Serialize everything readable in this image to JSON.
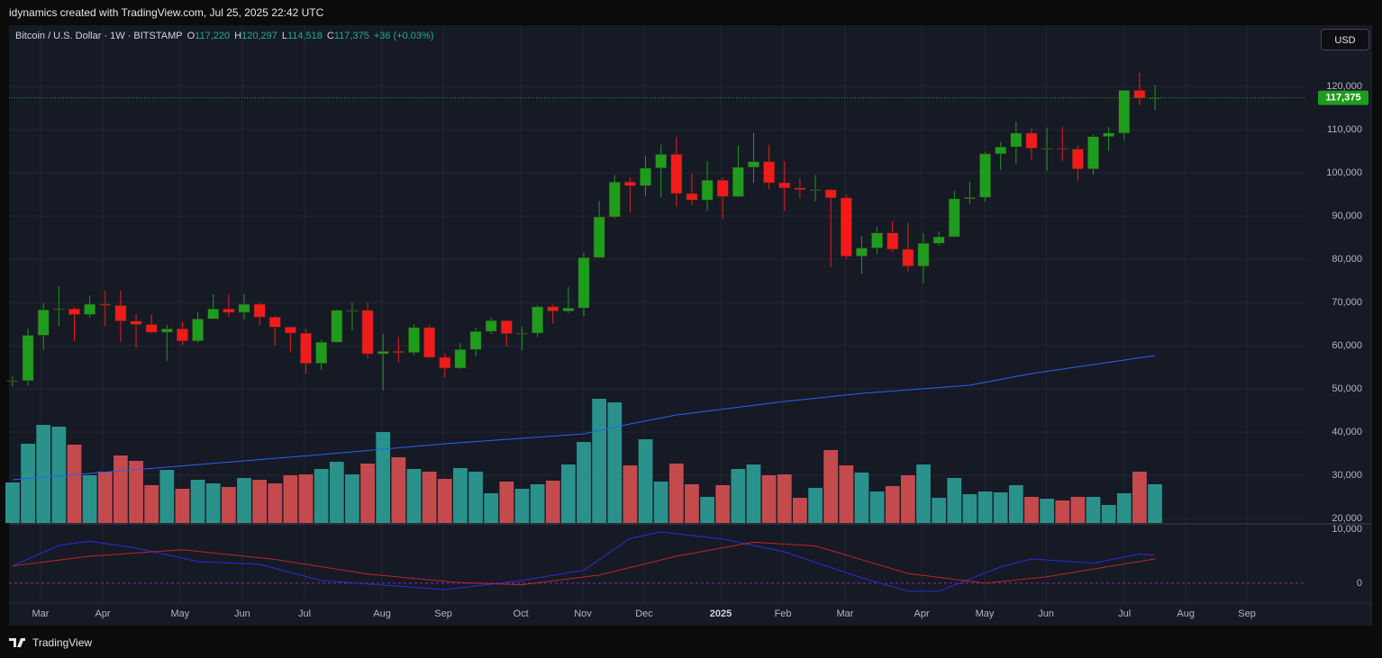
{
  "header": {
    "text": "idynamics created with TradingView.com, Jul 25, 2025 22:42 UTC"
  },
  "footer": {
    "brand": "TradingView"
  },
  "currency_button": "USD",
  "legend": {
    "symbol": "Bitcoin / U.S. Dollar · 1W · BITSTAMP",
    "fields": [
      {
        "key": "O",
        "value": "117,220"
      },
      {
        "key": "H",
        "value": "120,297"
      },
      {
        "key": "L",
        "value": "114,518"
      },
      {
        "key": "C",
        "value": "117,375"
      }
    ],
    "change": "+36 (+0.03%)"
  },
  "chart_data": {
    "type": "candlestick",
    "x": [
      0,
      1,
      2,
      3,
      4,
      5,
      6,
      7,
      8,
      9,
      10,
      11,
      12,
      13,
      14,
      15,
      16,
      17,
      18,
      19,
      20,
      21,
      22,
      23,
      24,
      25,
      26,
      27,
      28,
      29,
      30,
      31,
      32,
      33,
      34,
      35,
      36,
      37,
      38,
      39,
      40,
      41,
      42,
      43,
      44,
      45,
      46,
      47,
      48,
      49,
      50,
      51,
      52,
      53,
      54,
      55,
      56,
      57,
      58,
      59,
      60,
      61,
      62,
      63,
      64,
      65,
      66,
      67,
      68,
      69,
      70,
      71,
      72,
      73,
      74
    ],
    "open": [
      51700,
      51900,
      62400,
      68300,
      68500,
      67200,
      69600,
      69300,
      65700,
      64900,
      63100,
      63900,
      61100,
      66200,
      68500,
      67700,
      69600,
      66600,
      64300,
      62900,
      55900,
      60800,
      68200,
      68200,
      58100,
      58700,
      58400,
      64200,
      57300,
      54800,
      59100,
      63300,
      65800,
      62800,
      62900,
      69000,
      68000,
      68700,
      80400,
      89800,
      97900,
      97000,
      101100,
      104300,
      95200,
      93700,
      98300,
      94500,
      101300,
      102600,
      97700,
      96500,
      96100,
      96100,
      94200,
      80700,
      82600,
      86100,
      82300,
      78400,
      83700,
      85200,
      94000,
      94300,
      104400,
      106000,
      109200,
      105700,
      105700,
      105500,
      100900,
      108400,
      109200,
      119100,
      117220
    ],
    "high": [
      52900,
      64000,
      69900,
      73700,
      68900,
      71600,
      72700,
      72800,
      67300,
      67200,
      64800,
      65500,
      67700,
      71900,
      71900,
      71900,
      70100,
      66900,
      64500,
      63900,
      61400,
      68400,
      70000,
      70000,
      62700,
      62000,
      65000,
      64900,
      58200,
      60600,
      64100,
      66500,
      66000,
      64400,
      69400,
      69500,
      73600,
      81500,
      93500,
      99500,
      98900,
      103900,
      106500,
      108300,
      99800,
      102700,
      98900,
      106300,
      109300,
      106500,
      102700,
      98800,
      99500,
      96300,
      95000,
      85300,
      87500,
      88800,
      88500,
      86000,
      86400,
      95800,
      97900,
      104900,
      107100,
      111900,
      110400,
      110500,
      110600,
      106300,
      108800,
      110600,
      119000,
      123200,
      120297
    ],
    "low": [
      50500,
      50800,
      59000,
      64500,
      61000,
      66500,
      64500,
      60800,
      59600,
      62800,
      56500,
      60200,
      60700,
      66100,
      66700,
      66100,
      64600,
      60000,
      58400,
      53500,
      54300,
      60800,
      63500,
      57100,
      49600,
      56100,
      57800,
      57100,
      52600,
      54600,
      57500,
      62700,
      59800,
      58900,
      62000,
      65100,
      67500,
      66800,
      80400,
      89400,
      90800,
      94600,
      94300,
      92200,
      92500,
      91300,
      89300,
      94300,
      97700,
      96200,
      91200,
      94100,
      93400,
      78200,
      80000,
      76600,
      81200,
      81600,
      77200,
      74400,
      83100,
      85100,
      92800,
      93400,
      100700,
      102000,
      103100,
      100400,
      102700,
      98200,
      99600,
      105100,
      107500,
      115700,
      114518
    ],
    "close": [
      51900,
      62400,
      68300,
      68500,
      67200,
      69600,
      69300,
      65700,
      64900,
      63100,
      63900,
      61100,
      66200,
      68500,
      67700,
      69600,
      66600,
      64300,
      62900,
      55900,
      60800,
      68200,
      68200,
      58100,
      58700,
      58400,
      64200,
      57300,
      54800,
      59100,
      63300,
      65800,
      62800,
      62900,
      69000,
      68000,
      68700,
      80400,
      89800,
      97900,
      97000,
      101100,
      104300,
      95200,
      93700,
      98300,
      94500,
      101300,
      102600,
      97700,
      96500,
      96100,
      96100,
      94200,
      80700,
      82600,
      86100,
      82300,
      78400,
      83700,
      85200,
      94000,
      94300,
      104400,
      106000,
      109200,
      105700,
      105700,
      105500,
      100900,
      108400,
      109200,
      119100,
      117300,
      117375
    ],
    "up_color": "#1e9c1e",
    "down_color": "#f21b1b",
    "last_price_label": "117,375",
    "last_price_color": "#1e9c1e",
    "volume": {
      "values": [
        9000,
        17600,
        21800,
        21400,
        17400,
        10600,
        11400,
        15000,
        13800,
        8400,
        11800,
        7600,
        9600,
        8800,
        8000,
        10000,
        9600,
        8800,
        10600,
        10800,
        12000,
        13600,
        10800,
        13200,
        20200,
        14600,
        12000,
        11400,
        9800,
        12200,
        11400,
        6600,
        9200,
        7600,
        8600,
        9400,
        13000,
        18000,
        27600,
        26800,
        12800,
        18600,
        9200,
        13200,
        8600,
        5800,
        8400,
        12000,
        13000,
        10600,
        10800,
        5600,
        7800,
        16200,
        12800,
        11200,
        7000,
        8200,
        10600,
        13000,
        5600,
        10000,
        6400,
        7000,
        6800,
        8400,
        5800,
        5400,
        5000,
        5800,
        5800,
        4000,
        6600,
        11400,
        8600
      ],
      "vlim": [
        0,
        30000
      ],
      "up_color": "#2a918b",
      "down_color": "#c54a4d"
    },
    "ma": {
      "color": "#2f5ff0",
      "x": [
        0,
        20,
        28,
        37,
        40,
        43,
        50,
        55,
        62,
        66,
        74
      ],
      "values": [
        28958,
        34792,
        37292,
        39583,
        41875,
        43958,
        47083,
        48958,
        50833,
        53542,
        57708
      ]
    },
    "xlim": [
      -0.23,
      83.8
    ],
    "ylim": [
      18750,
      134170
    ],
    "yticks": [
      {
        "value": 20000,
        "label": "20,000"
      },
      {
        "value": 30000,
        "label": "30,000"
      },
      {
        "value": 40000,
        "label": "40,000"
      },
      {
        "value": 50000,
        "label": "50,000"
      },
      {
        "value": 60000,
        "label": "60,000"
      },
      {
        "value": 70000,
        "label": "70,000"
      },
      {
        "value": 80000,
        "label": "80,000"
      },
      {
        "value": 90000,
        "label": "90,000"
      },
      {
        "value": 100000,
        "label": "100,000"
      },
      {
        "value": 110000,
        "label": "110,000"
      },
      {
        "value": 120000,
        "label": "120,000"
      }
    ],
    "xticks": [
      {
        "value": 1.81,
        "label": "Mar"
      },
      {
        "value": 5.84,
        "label": "Apr"
      },
      {
        "value": 10.85,
        "label": "May"
      },
      {
        "value": 14.88,
        "label": "Jun"
      },
      {
        "value": 18.91,
        "label": "Jul"
      },
      {
        "value": 23.93,
        "label": "Aug"
      },
      {
        "value": 27.9,
        "label": "Sep"
      },
      {
        "value": 32.92,
        "label": "Oct"
      },
      {
        "value": 36.94,
        "label": "Nov"
      },
      {
        "value": 40.91,
        "label": "Dec"
      },
      {
        "value": 45.87,
        "label": "2025"
      },
      {
        "value": 49.9,
        "label": "Feb"
      },
      {
        "value": 53.92,
        "label": "Mar"
      },
      {
        "value": 58.89,
        "label": "Apr"
      },
      {
        "value": 62.97,
        "label": "May"
      },
      {
        "value": 66.94,
        "label": "Jun"
      },
      {
        "value": 72.02,
        "label": "Jul"
      },
      {
        "value": 75.99,
        "label": "Aug"
      },
      {
        "value": 79.95,
        "label": "Sep"
      }
    ],
    "grid": true,
    "oscillator": {
      "ylim": [
        -3700,
        11000
      ],
      "yticks": [
        0,
        {
          "value": 10000,
          "label": "10,000"
        }
      ],
      "zero_color": "#9c27b0",
      "series": [
        {
          "color": "#2c2cd8",
          "x": [
            0,
            3,
            5,
            8,
            12,
            16,
            20,
            28,
            33,
            37,
            40,
            42,
            46,
            50,
            55,
            58,
            60,
            64,
            66,
            70,
            73,
            74
          ],
          "values": [
            3200,
            7000,
            7800,
            6500,
            4000,
            3500,
            500,
            -1200,
            500,
            2400,
            8300,
            9500,
            8200,
            5800,
            1000,
            -1500,
            -1500,
            3000,
            4500,
            3700,
            5400,
            5200
          ]
        },
        {
          "color": "#b8262b",
          "x": [
            0,
            5,
            11,
            17,
            23,
            29,
            33,
            38,
            43,
            48,
            52,
            58,
            63,
            67,
            74
          ],
          "values": [
            3200,
            5000,
            6200,
            4400,
            1700,
            100,
            -300,
            1500,
            5000,
            7600,
            6900,
            1800,
            0,
            1200,
            4500
          ]
        }
      ]
    }
  }
}
